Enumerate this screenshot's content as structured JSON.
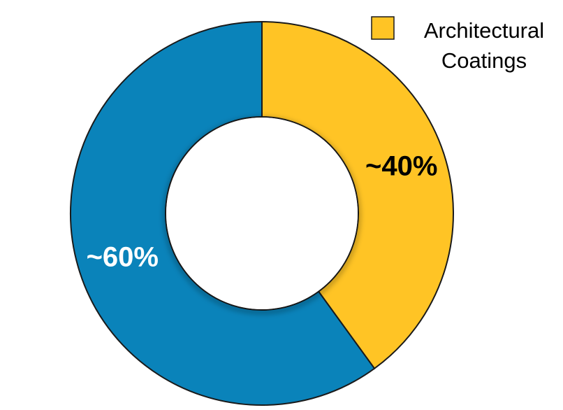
{
  "chart_data": {
    "type": "pie",
    "variant": "donut",
    "categories": [
      "Architectural Coatings",
      ""
    ],
    "values": [
      40,
      60
    ],
    "data_labels": [
      "~40%",
      "~60%"
    ],
    "colors": [
      "#FFC425",
      "#0A83BA"
    ],
    "label_colors": [
      "#000000",
      "#FFFFFF"
    ],
    "start_angle_deg": 0,
    "direction": "clockwise",
    "legend": {
      "position": "top-right",
      "entries": [
        {
          "label_line1": "Architectural",
          "label_line2": "Coatings",
          "color": "#FFC425"
        }
      ]
    }
  }
}
